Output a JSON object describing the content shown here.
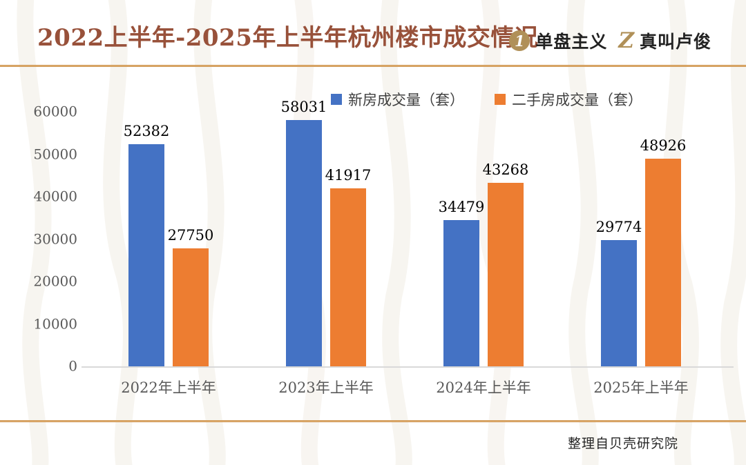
{
  "header": {
    "title": "2022上半年-2025年上半年杭州楼市成交情况",
    "logos": [
      {
        "icon": "1",
        "label": "单盘主义"
      },
      {
        "icon": "Z",
        "label": "真叫卢俊"
      }
    ]
  },
  "chart_data": {
    "type": "bar",
    "title": "2022上半年-2025年上半年杭州楼市成交情况",
    "categories": [
      "2022年上半年",
      "2023年上半年",
      "2024年上半年",
      "2025年上半年"
    ],
    "series": [
      {
        "name": "新房成交量（套）",
        "color": "#4472C4",
        "values": [
          52382,
          58031,
          34479,
          29774
        ]
      },
      {
        "name": "二手房成交量（套）",
        "color": "#ED7D31",
        "values": [
          27750,
          41917,
          43268,
          48926
        ]
      }
    ],
    "xlabel": "",
    "ylabel": "",
    "ylim": [
      0,
      60000
    ],
    "yticks": [
      0,
      10000,
      20000,
      30000,
      40000,
      50000,
      60000
    ],
    "grid": false,
    "legend_position": "top-center",
    "data_labels": true
  },
  "colors": {
    "title": "#98513A",
    "gold_accent": "#C9964F",
    "logo_gold": "#B09058",
    "axis_text": "#595959",
    "bar_blue": "#4472C4",
    "bar_orange": "#ED7D31"
  },
  "footer": {
    "source": "整理自贝壳研究院"
  }
}
